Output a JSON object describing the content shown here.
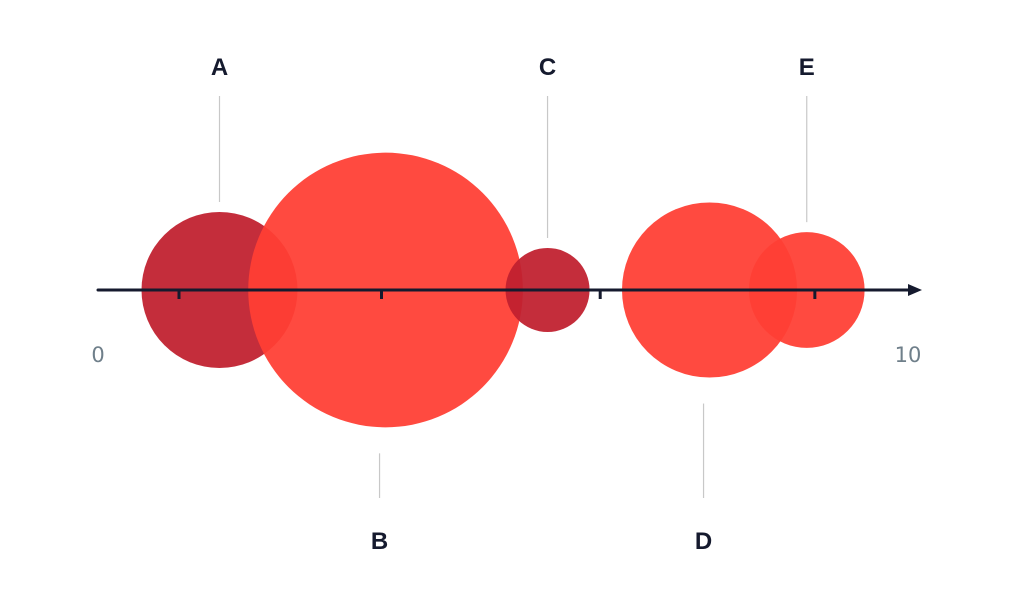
{
  "chart_data": {
    "type": "bubble",
    "xlim": [
      0,
      10
    ],
    "x_tick_labels": [
      "0",
      "10"
    ],
    "minor_ticks": [
      1,
      3.5,
      6.2,
      8.85
    ],
    "series": [
      {
        "label": "A",
        "x": 1.5,
        "size": 1.0,
        "color": "#c0202f",
        "callout": "above"
      },
      {
        "label": "B",
        "x": 3.55,
        "size": 3.1,
        "color": "#ff3f34",
        "callout": "below"
      },
      {
        "label": "C",
        "x": 5.55,
        "size": 0.29,
        "color": "#c0202f",
        "callout": "above"
      },
      {
        "label": "D",
        "x": 7.55,
        "size": 1.26,
        "color": "#ff3f34",
        "callout": "below"
      },
      {
        "label": "E",
        "x": 8.75,
        "size": 0.55,
        "color": "#ff3f34",
        "callout": "above"
      }
    ],
    "colors": {
      "axis": "#151a2e",
      "leader": "#c8c8c8",
      "overlap": "#e8303a"
    }
  }
}
